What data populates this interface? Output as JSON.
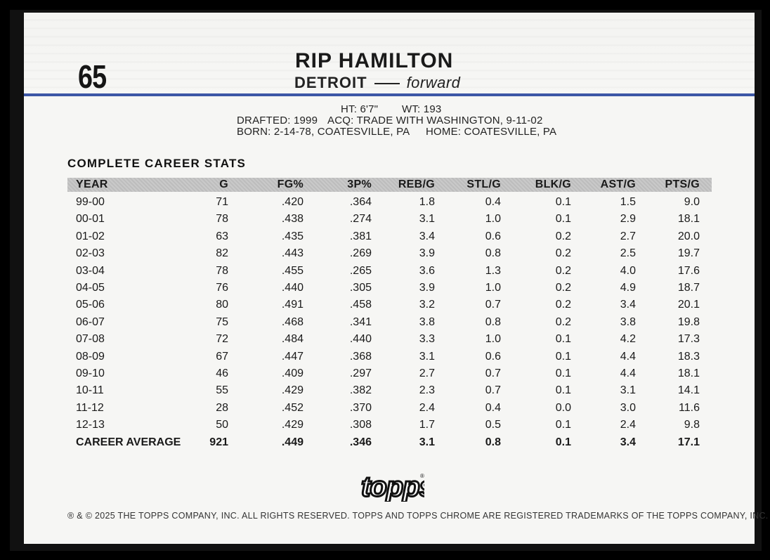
{
  "card": {
    "number": "65",
    "name": "RIP HAMILTON",
    "team": "DETROIT",
    "position": "forward"
  },
  "bio": {
    "height": "HT: 6'7\"",
    "weight": "WT: 193",
    "drafted": "DRAFTED: 1999",
    "acquired": "ACQ: TRADE WITH WASHINGTON, 9-11-02",
    "born": "BORN: 2-14-78, COATESVILLE, PA",
    "home": "HOME: COATESVILLE, PA"
  },
  "stats": {
    "title": "COMPLETE CAREER STATS",
    "columns": [
      "YEAR",
      "G",
      "FG%",
      "3P%",
      "REB/G",
      "STL/G",
      "BLK/G",
      "AST/G",
      "PTS/G"
    ],
    "rows": [
      [
        "99-00",
        "71",
        ".420",
        ".364",
        "1.8",
        "0.4",
        "0.1",
        "1.5",
        "9.0"
      ],
      [
        "00-01",
        "78",
        ".438",
        ".274",
        "3.1",
        "1.0",
        "0.1",
        "2.9",
        "18.1"
      ],
      [
        "01-02",
        "63",
        ".435",
        ".381",
        "3.4",
        "0.6",
        "0.2",
        "2.7",
        "20.0"
      ],
      [
        "02-03",
        "82",
        ".443",
        ".269",
        "3.9",
        "0.8",
        "0.2",
        "2.5",
        "19.7"
      ],
      [
        "03-04",
        "78",
        ".455",
        ".265",
        "3.6",
        "1.3",
        "0.2",
        "4.0",
        "17.6"
      ],
      [
        "04-05",
        "76",
        ".440",
        ".305",
        "3.9",
        "1.0",
        "0.2",
        "4.9",
        "18.7"
      ],
      [
        "05-06",
        "80",
        ".491",
        ".458",
        "3.2",
        "0.7",
        "0.2",
        "3.4",
        "20.1"
      ],
      [
        "06-07",
        "75",
        ".468",
        ".341",
        "3.8",
        "0.8",
        "0.2",
        "3.8",
        "19.8"
      ],
      [
        "07-08",
        "72",
        ".484",
        ".440",
        "3.3",
        "1.0",
        "0.1",
        "4.2",
        "17.3"
      ],
      [
        "08-09",
        "67",
        ".447",
        ".368",
        "3.1",
        "0.6",
        "0.1",
        "4.4",
        "18.3"
      ],
      [
        "09-10",
        "46",
        ".409",
        ".297",
        "2.7",
        "0.7",
        "0.1",
        "4.4",
        "18.1"
      ],
      [
        "10-11",
        "55",
        ".429",
        ".382",
        "2.3",
        "0.7",
        "0.1",
        "3.1",
        "14.1"
      ],
      [
        "11-12",
        "28",
        ".452",
        ".370",
        "2.4",
        "0.4",
        "0.0",
        "3.0",
        "11.6"
      ],
      [
        "12-13",
        "50",
        ".429",
        ".308",
        "1.7",
        "0.5",
        "0.1",
        "2.4",
        "9.8"
      ]
    ],
    "career": [
      "CAREER AVERAGE",
      "921",
      ".449",
      ".346",
      "3.1",
      "0.8",
      "0.1",
      "3.4",
      "17.1"
    ]
  },
  "brand": {
    "logo_text": "topps",
    "accent_color": "#3d57a6"
  },
  "legal": "® & © 2025 THE TOPPS COMPANY, INC. ALL RIGHTS RESERVED. TOPPS AND TOPPS CHROME ARE REGISTERED TRADEMARKS OF THE TOPPS COMPANY, INC."
}
